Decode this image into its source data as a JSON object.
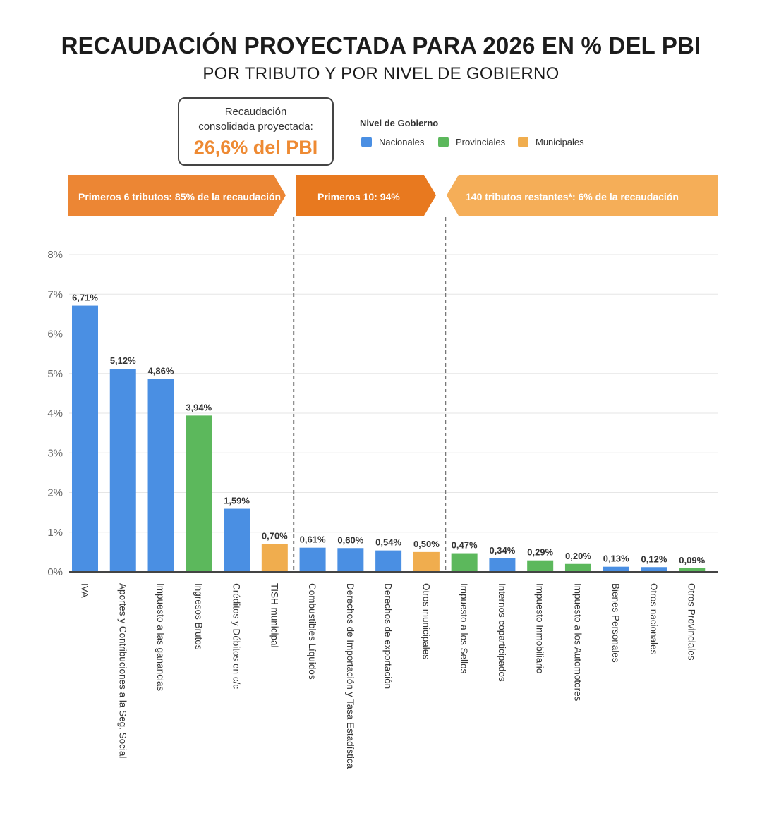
{
  "title": "RECAUDACIÓN PROYECTADA PARA 2026 EN % DEL PBI",
  "subtitle": "POR TRIBUTO Y POR NIVEL DE GOBIERNO",
  "callout": {
    "label_line1": "Recaudación",
    "label_line2": "consolidada proyectada:",
    "value": "26,6% del PBI"
  },
  "legend": {
    "title": "Nivel de Gobierno",
    "items": [
      {
        "label": "Nacionales",
        "color": "#4a8fe3"
      },
      {
        "label": "Provinciales",
        "color": "#5cb85c"
      },
      {
        "label": "Municipales",
        "color": "#f0ad4e"
      }
    ]
  },
  "banners": [
    {
      "label": "Primeros 6 tributos: 85% de la recaudación",
      "color": "#ec8634"
    },
    {
      "label": "Primeros 10: 94%",
      "color": "#e8791f"
    },
    {
      "label": "140 tributos restantes*: 6% de la recaudación",
      "color": "#f5ae58"
    }
  ],
  "chart_data": {
    "type": "bar",
    "categories": [
      "IVA",
      "Aportes y Contribuciones a la Seg. Social",
      "Impuesto a las ganancias",
      "Ingresos Brutos",
      "Créditos y Débitos en c/c",
      "TISH municipal",
      "Combustibles Líquidos",
      "Derechos de Importación y Tasa Estadística",
      "Derechos de exportación",
      "Otros municipales",
      "Impuesto a los Sellos",
      "Internos coparticipados",
      "Impuesto Inmobiliario",
      "Impuesto a los Automotores",
      "Bienes Personales",
      "Otros nacionales",
      "Otros Provinciales"
    ],
    "values": [
      6.71,
      5.12,
      4.86,
      3.94,
      1.59,
      0.7,
      0.61,
      0.6,
      0.54,
      0.5,
      0.47,
      0.34,
      0.29,
      0.2,
      0.13,
      0.12,
      0.09
    ],
    "value_labels": [
      "6,71%",
      "5,12%",
      "4,86%",
      "3,94%",
      "1,59%",
      "0,70%",
      "0,61%",
      "0,60%",
      "0,54%",
      "0,50%",
      "0,47%",
      "0,34%",
      "0,29%",
      "0,20%",
      "0,13%",
      "0,12%",
      "0,09%"
    ],
    "levels": [
      "Nacionales",
      "Nacionales",
      "Nacionales",
      "Provinciales",
      "Nacionales",
      "Municipales",
      "Nacionales",
      "Nacionales",
      "Nacionales",
      "Municipales",
      "Provinciales",
      "Nacionales",
      "Provinciales",
      "Provinciales",
      "Nacionales",
      "Nacionales",
      "Provinciales"
    ],
    "yticks": [
      "0%",
      "1%",
      "2%",
      "3%",
      "4%",
      "5%",
      "6%",
      "7%",
      "8%"
    ],
    "ylim": [
      0,
      8
    ],
    "grid": true,
    "group_dividers_after": [
      6,
      10
    ]
  }
}
